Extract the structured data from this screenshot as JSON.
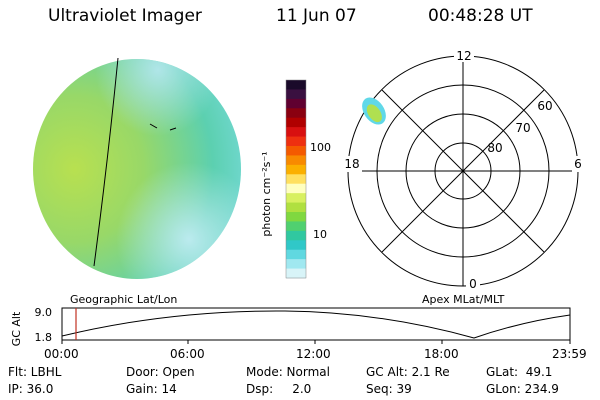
{
  "header": {
    "title": "Ultraviolet Imager",
    "date": "11 Jun 07",
    "time": "00:48:28 UT"
  },
  "colorbar": {
    "unit_label": "photon cm⁻²s⁻¹",
    "ticks": [
      "100",
      "10"
    ],
    "colors": [
      "#1a0a2a",
      "#3a1040",
      "#600030",
      "#8a0010",
      "#b00000",
      "#d81010",
      "#ee3010",
      "#f45a00",
      "#f88a00",
      "#fbb000",
      "#ffe060",
      "#ffffc0",
      "#d8f060",
      "#b0e040",
      "#80d840",
      "#50d070",
      "#30c8a0",
      "#30c8c8",
      "#60d8e0",
      "#a0e8f0",
      "#d8f4f8"
    ]
  },
  "polar": {
    "mlt_labels": [
      "12",
      "18",
      "6",
      "0"
    ],
    "lat_labels": [
      "60",
      "70",
      "80"
    ]
  },
  "timeline": {
    "left_label": "Geographic Lat/Lon",
    "right_label": "Apex MLat/MLT",
    "axis_title": "GC Alt",
    "y_ticks": [
      "9.0",
      "1.8"
    ],
    "x_ticks": [
      "00:00",
      "06:00",
      "12:00",
      "18:00",
      "23:59"
    ],
    "marker_color": "#c03020"
  },
  "info": {
    "flt": "Flt: LBHL",
    "ip": "IP: 36.0",
    "door": "Door: Open",
    "gain": "Gain: 14",
    "mode": "Mode: Normal",
    "dsp": "Dsp:     2.0",
    "gcalt": "GC Alt: 2.1 Re",
    "seq": "Seq: 39",
    "glat": "GLat:  49.1",
    "glon": "GLon: 234.9"
  }
}
